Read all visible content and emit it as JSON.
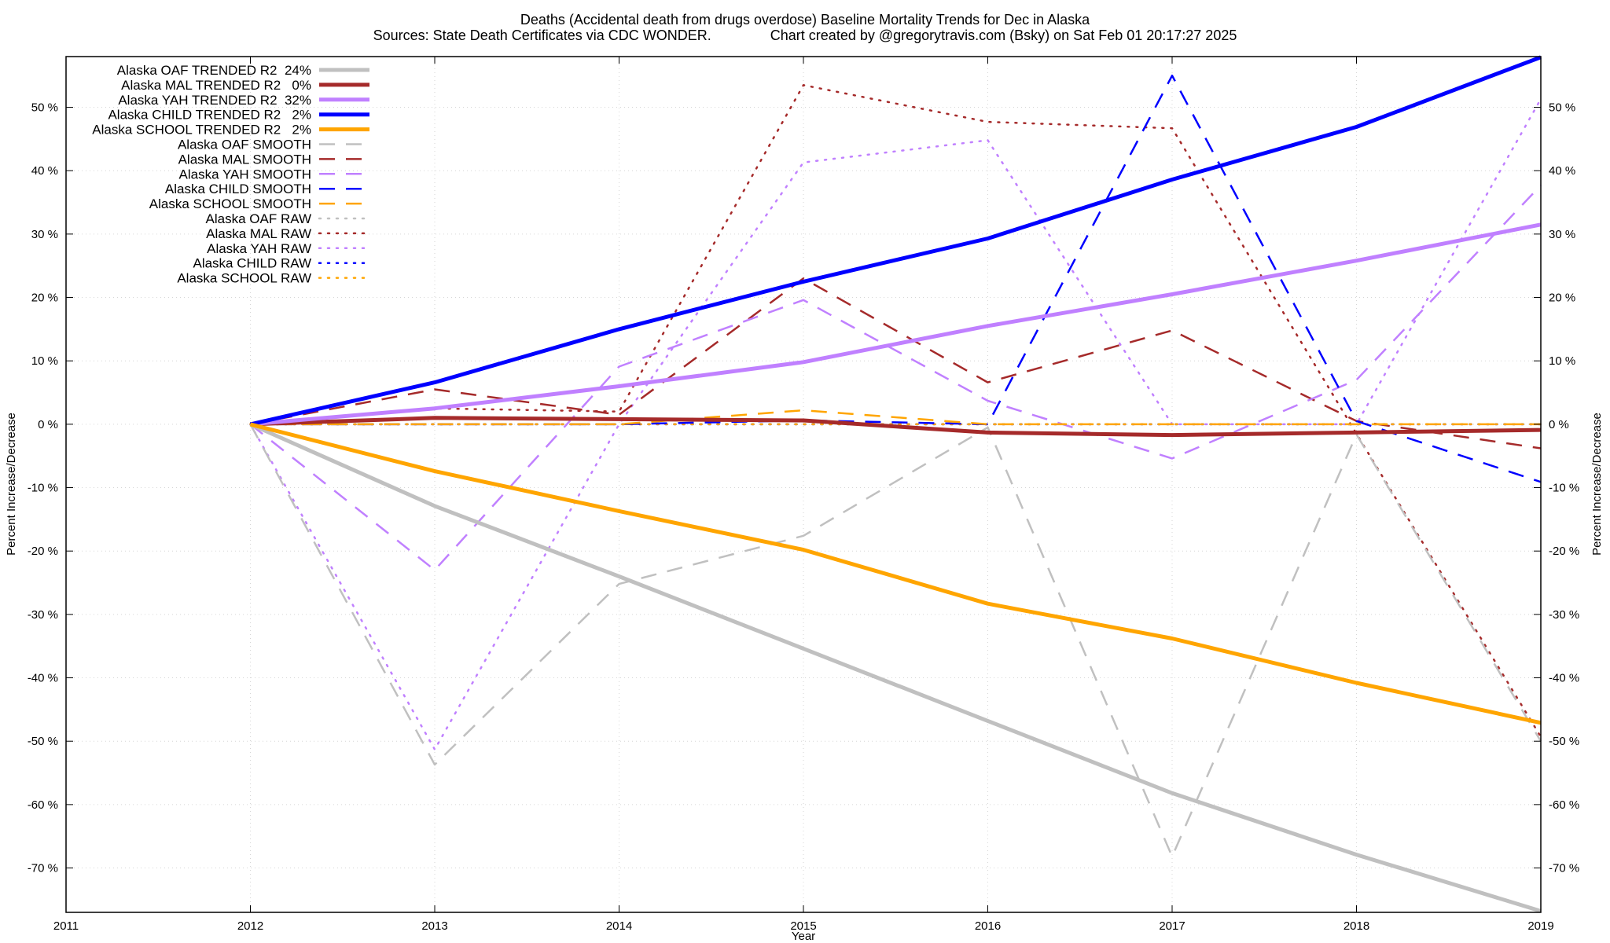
{
  "chart_data": {
    "type": "line",
    "title": "Deaths (Accidental death from drugs overdose)  Baseline Mortality Trends for Dec in Alaska",
    "subtitle": "Sources: State Death Certificates via CDC WONDER.               Chart created by @gregorytravis.com (Bsky) on Sat Feb 01 20:17:27 2025",
    "xlabel": "Year",
    "ylabel": "Percent Increase/Decrease",
    "y2label": "Percent Increase/Decrease",
    "xlim": [
      2011,
      2019
    ],
    "ylim": [
      -77,
      58
    ],
    "xticks": [
      2011,
      2012,
      2013,
      2014,
      2015,
      2016,
      2017,
      2018,
      2019
    ],
    "yticks": [
      -70,
      -60,
      -50,
      -40,
      -30,
      -20,
      -10,
      0,
      10,
      20,
      30,
      40,
      50
    ],
    "ytick_suffix": " %",
    "grid": true,
    "legend_position": "top-left",
    "x": [
      2012,
      2013,
      2014,
      2015,
      2016,
      2017,
      2018,
      2019
    ],
    "series": [
      {
        "name": "Alaska OAF TRENDED R2  24%",
        "color": "#c0c0c0",
        "style": "solid",
        "width": 5,
        "values": [
          0,
          -12.9,
          -24.0,
          -35.4,
          -46.8,
          -58.2,
          -67.9,
          -76.8
        ]
      },
      {
        "name": "Alaska MAL TRENDED R2   0%",
        "color": "#a52a2a",
        "style": "solid",
        "width": 5,
        "values": [
          0,
          1.0,
          0.8,
          0.6,
          -1.3,
          -1.7,
          -1.3,
          -0.9
        ]
      },
      {
        "name": "Alaska YAH TRENDED R2  32%",
        "color": "#c080ff",
        "style": "solid",
        "width": 5,
        "values": [
          0,
          2.5,
          6.0,
          9.8,
          15.5,
          20.5,
          25.8,
          31.5
        ]
      },
      {
        "name": "Alaska CHILD TRENDED R2   2%",
        "color": "#0000ff",
        "style": "solid",
        "width": 5,
        "values": [
          0,
          6.6,
          15.0,
          22.5,
          29.3,
          38.6,
          46.9,
          57.9
        ]
      },
      {
        "name": "Alaska SCHOOL TRENDED R2   2%",
        "color": "#ffa500",
        "style": "solid",
        "width": 5,
        "values": [
          0,
          -7.4,
          -13.7,
          -19.8,
          -28.3,
          -33.8,
          -40.8,
          -47.1
        ]
      },
      {
        "name": "Alaska OAF SMOOTH",
        "color": "#c0c0c0",
        "style": "dash",
        "width": 2.5,
        "values": [
          0,
          -53.7,
          -25.2,
          -17.6,
          -0.5,
          -68.2,
          -1.6,
          -50.0
        ]
      },
      {
        "name": "Alaska MAL SMOOTH",
        "color": "#a52a2a",
        "style": "dash",
        "width": 2.5,
        "values": [
          0,
          5.5,
          1.5,
          23.0,
          6.6,
          14.8,
          0.5,
          -3.8
        ]
      },
      {
        "name": "Alaska YAH SMOOTH",
        "color": "#c080ff",
        "style": "dash",
        "width": 2.5,
        "values": [
          0,
          -23.0,
          9.1,
          19.6,
          3.7,
          -5.4,
          7.0,
          37.7
        ]
      },
      {
        "name": "Alaska CHILD SMOOTH",
        "color": "#0000ff",
        "style": "dash",
        "width": 2.5,
        "values": [
          0,
          0,
          0,
          0.6,
          0,
          55.0,
          0.5,
          -9.1
        ]
      },
      {
        "name": "Alaska SCHOOL SMOOTH",
        "color": "#ffa500",
        "style": "dash",
        "width": 2.5,
        "values": [
          0,
          0,
          0,
          2.2,
          0,
          0,
          0,
          0
        ]
      },
      {
        "name": "Alaska OAF RAW",
        "color": "#c0c0c0",
        "style": "dot",
        "width": 2.5,
        "values": [
          0,
          0,
          0,
          0,
          0,
          0,
          0,
          0
        ]
      },
      {
        "name": "Alaska MAL RAW",
        "color": "#a52a2a",
        "style": "dot",
        "width": 2.5,
        "values": [
          0,
          2.5,
          2.0,
          53.5,
          47.7,
          46.7,
          -1.5,
          -49.3
        ]
      },
      {
        "name": "Alaska YAH RAW",
        "color": "#c080ff",
        "style": "dot",
        "width": 2.5,
        "values": [
          0,
          -51.3,
          0,
          41.3,
          44.8,
          0,
          0,
          51.3
        ]
      },
      {
        "name": "Alaska CHILD RAW",
        "color": "#0000ff",
        "style": "dot",
        "width": 2.5,
        "values": [
          0,
          0,
          0,
          0,
          0,
          0,
          0,
          0
        ]
      },
      {
        "name": "Alaska SCHOOL RAW",
        "color": "#ffa500",
        "style": "dot",
        "width": 2.5,
        "values": [
          0,
          0,
          0,
          0,
          0,
          0,
          0,
          0
        ]
      }
    ]
  }
}
